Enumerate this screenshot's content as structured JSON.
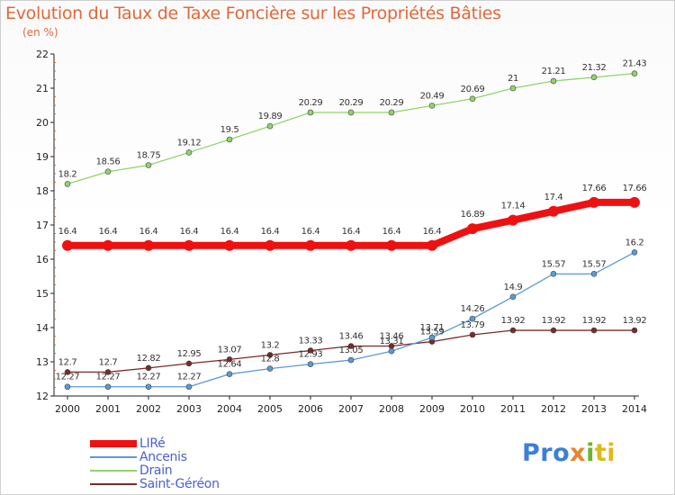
{
  "chart_data": {
    "type": "line",
    "title": "Evolution du Taux de Taxe Foncière sur les Propriétés Bâties",
    "subtitle": "(en %)",
    "xlabel": "",
    "ylabel": "",
    "x": [
      "2000",
      "2001",
      "2002",
      "2003",
      "2004",
      "2005",
      "2006",
      "2007",
      "2008",
      "2009",
      "2010",
      "2011",
      "2012",
      "2013",
      "2014"
    ],
    "ylim": [
      12,
      22
    ],
    "yticks": [
      "12",
      "13",
      "14",
      "15",
      "16",
      "17",
      "18",
      "19",
      "20",
      "21",
      "22"
    ],
    "grid": false,
    "legend_position": "bottom-left",
    "series": [
      {
        "name": "LIRé",
        "color": "#ee1111",
        "values": [
          16.4,
          16.4,
          16.4,
          16.4,
          16.4,
          16.4,
          16.4,
          16.4,
          16.4,
          16.4,
          16.89,
          17.14,
          17.4,
          17.66,
          17.66
        ],
        "labels": [
          "16.4",
          "16.4",
          "16.4",
          "16.4",
          "16.4",
          "16.4",
          "16.4",
          "16.4",
          "16.4",
          "16.4",
          "16.89",
          "17.14",
          "17.4",
          "17.66",
          "17.66"
        ]
      },
      {
        "name": "Ancenis",
        "color": "#5b9ad4",
        "values": [
          12.27,
          12.27,
          12.27,
          12.27,
          12.64,
          12.8,
          12.93,
          13.05,
          13.31,
          13.71,
          14.26,
          14.9,
          15.57,
          15.57,
          16.2
        ],
        "labels": [
          "12.27",
          "12.27",
          "12.27",
          "12.27",
          "12.64",
          "12.8",
          "12.93",
          "13.05",
          "13.31",
          "13.71",
          "14.26",
          "14.9",
          "15.57",
          "15.57",
          "16.2"
        ]
      },
      {
        "name": "Drain",
        "color": "#8fd46a",
        "values": [
          18.2,
          18.56,
          18.75,
          19.12,
          19.5,
          19.89,
          20.29,
          20.29,
          20.29,
          20.49,
          20.69,
          21,
          21.21,
          21.32,
          21.43
        ],
        "labels": [
          "18.2",
          "18.56",
          "18.75",
          "19.12",
          "19.5",
          "19.89",
          "20.29",
          "20.29",
          "20.29",
          "20.49",
          "20.69",
          "21",
          "21.21",
          "21.32",
          "21.43"
        ]
      },
      {
        "name": "Saint-Géréon",
        "color": "#7a2a2a",
        "values": [
          12.7,
          12.7,
          12.82,
          12.95,
          13.07,
          13.2,
          13.33,
          13.46,
          13.46,
          13.59,
          13.79,
          13.92,
          13.92,
          13.92,
          13.92
        ],
        "labels": [
          "12.7",
          "12.7",
          "12.82",
          "12.95",
          "13.07",
          "13.2",
          "13.33",
          "13.46",
          "13.46",
          "13.59",
          "13.79",
          "13.92",
          "13.92",
          "13.92",
          "13.92"
        ]
      }
    ]
  },
  "logo": {
    "p1": "Pro",
    "p2": "x",
    "p3": "i",
    "p4": "ti"
  }
}
